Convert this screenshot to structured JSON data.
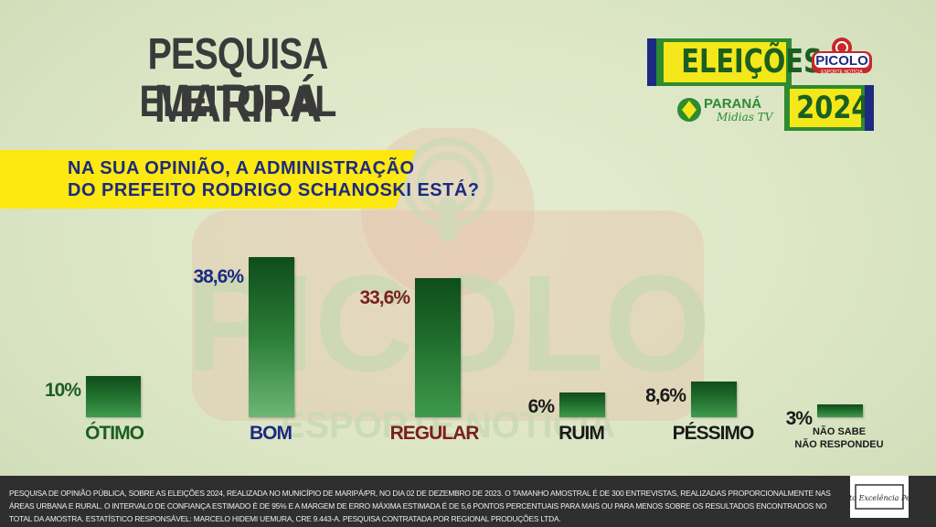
{
  "title": {
    "line1": "PESQUISA ELEITORAL",
    "line2": "MARIPÁ"
  },
  "question": {
    "line1": "NA SUA OPINIÃO, A ADMINISTRAÇÃO",
    "line2": "DO PREFEITO RODRIGO SCHANOSKI ESTÁ?"
  },
  "logo": {
    "eleicoes": "ELEIÇÕES",
    "year": "2024",
    "picolo": "PICOLO",
    "picolo_sub": "ESPORTE NOTÍCIA",
    "parana": "PARANÁ",
    "parana_sub": "Midias TV"
  },
  "watermark": {
    "text": "PICOLO",
    "sub": "ESPORTE NOTÍCIA"
  },
  "chart_data": {
    "type": "bar",
    "categories": [
      "ÓTIMO",
      "BOM",
      "REGULAR",
      "RUIM",
      "PÉSSIMO",
      "NÃO SABE NÃO RESPONDEU"
    ],
    "category_lines": [
      [
        "ÓTIMO"
      ],
      [
        "BOM"
      ],
      [
        "REGULAR"
      ],
      [
        "RUIM"
      ],
      [
        "PÉSSIMO"
      ],
      [
        "NÃO SABE",
        "NÃO RESPONDEU"
      ]
    ],
    "values": [
      10,
      38.6,
      33.6,
      6,
      8.6,
      3
    ],
    "value_labels": [
      "10%",
      "38,6%",
      "33,6%",
      "6%",
      "8,6%",
      "3%"
    ],
    "label_colors": [
      "#1b5e20",
      "#1c2a80",
      "#7b1f1f",
      "#1a1a1a",
      "#1a1a1a",
      "#1a1a1a"
    ],
    "ylim": [
      0,
      40
    ],
    "grid": false,
    "title": "",
    "xlabel": "",
    "ylabel": ""
  },
  "colors": {
    "bar": "#1d6a2a",
    "banner": "#fde80f",
    "question": "#1c2a80",
    "footer": "#2f2f2f"
  },
  "footer": {
    "text": "PESQUISA DE OPINIÃO PÚBLICA, SOBRE AS ELEIÇÕES 2024, REALIZADA NO MUNICÍPIO DE MARIPÁ/PR, NO DIA 02 DE DEZEMBRO DE 2023. O TAMANHO AMOSTRAL É DE 300 ENTREVISTAS, REALIZADAS PROPORCIONALMENTE NAS ÁREAS URBANA E RURAL. O INTERVALO DE CONFIANÇA ESTIMADO É DE 95% E A MARGEM DE ERRO MÁXIMA ESTIMADA É DE 5,6 PONTOS PERCENTUAIS PARA MAIS OU PARA MENOS SOBRE OS RESULTADOS ENCONTRADOS NO TOTAL DA AMOSTRA. ESTATÍSTICO RESPONSÁVEL: MARCELO HIDEMI UEMURA, CRE 9.443-A.  PESQUISA CONTRATADA POR REGIONAL PRODUÇÕES LTDA.",
    "institute": "Instituto Excelência Pesquisa"
  }
}
